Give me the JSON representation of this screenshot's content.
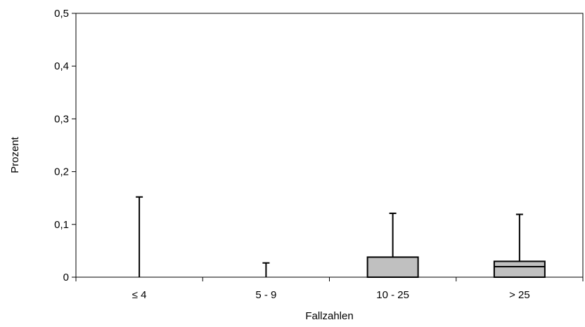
{
  "chart_data": {
    "type": "box",
    "title": "",
    "xlabel": "Fallzahlen",
    "ylabel": "Prozent",
    "ylim": [
      0,
      0.5
    ],
    "y_ticks": [
      0,
      0.1,
      0.2,
      0.3,
      0.4,
      0.5
    ],
    "y_tick_labels": [
      "0",
      "0,1",
      "0,2",
      "0,3",
      "0,4",
      "0,5"
    ],
    "categories": [
      "≤ 4",
      "5 - 9",
      "10 - 25",
      "> 25"
    ],
    "boxes": [
      {
        "category": "≤ 4",
        "q1": 0,
        "median": 0,
        "q3": 0,
        "whisker_high": 0.152
      },
      {
        "category": "5 - 9",
        "q1": 0,
        "median": 0,
        "q3": 0,
        "whisker_high": 0.027
      },
      {
        "category": "10 - 25",
        "q1": 0,
        "median": 0,
        "q3": 0.038,
        "whisker_high": 0.121
      },
      {
        "category": "> 25",
        "q1": 0,
        "median": 0.02,
        "q3": 0.03,
        "whisker_high": 0.119
      }
    ],
    "grid": false,
    "legend": "none",
    "colors": {
      "box_fill": "#c0c0c0",
      "line": "#000000"
    }
  }
}
